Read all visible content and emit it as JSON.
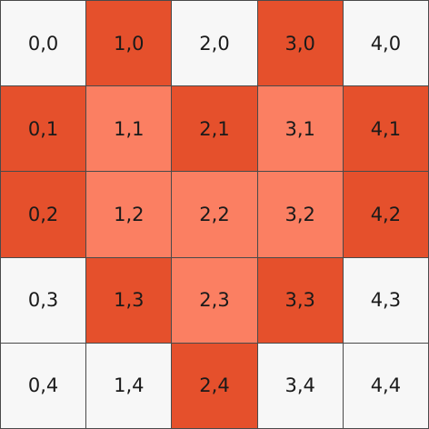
{
  "colors": {
    "white": "#f7f7f7",
    "dark": "#e5502c",
    "light": "#fb7f62",
    "border": "#4a4a4a"
  },
  "grid": {
    "columns": 5,
    "rows": 5,
    "cells": [
      {
        "label": "0,0",
        "state": "white"
      },
      {
        "label": "1,0",
        "state": "dark"
      },
      {
        "label": "2,0",
        "state": "white"
      },
      {
        "label": "3,0",
        "state": "dark"
      },
      {
        "label": "4,0",
        "state": "white"
      },
      {
        "label": "0,1",
        "state": "dark"
      },
      {
        "label": "1,1",
        "state": "light"
      },
      {
        "label": "2,1",
        "state": "dark"
      },
      {
        "label": "3,1",
        "state": "light"
      },
      {
        "label": "4,1",
        "state": "dark"
      },
      {
        "label": "0,2",
        "state": "dark"
      },
      {
        "label": "1,2",
        "state": "light"
      },
      {
        "label": "2,2",
        "state": "light"
      },
      {
        "label": "3,2",
        "state": "light"
      },
      {
        "label": "4,2",
        "state": "dark"
      },
      {
        "label": "0,3",
        "state": "white"
      },
      {
        "label": "1,3",
        "state": "dark"
      },
      {
        "label": "2,3",
        "state": "light"
      },
      {
        "label": "3,3",
        "state": "dark"
      },
      {
        "label": "4,3",
        "state": "white"
      },
      {
        "label": "0,4",
        "state": "white"
      },
      {
        "label": "1,4",
        "state": "white"
      },
      {
        "label": "2,4",
        "state": "dark"
      },
      {
        "label": "3,4",
        "state": "white"
      },
      {
        "label": "4,4",
        "state": "white"
      }
    ]
  }
}
